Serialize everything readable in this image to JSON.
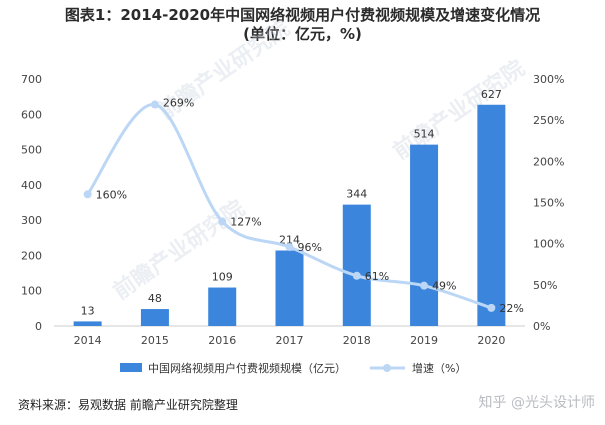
{
  "title_line1": "图表1：2014-2020年中国网络视频用户付费视频规模及增速变化情况",
  "title_line2": "(单位：亿元，%)",
  "footer": "资料来源：易观数据 前瞻产业研究院整理",
  "brand": "知乎 @光头设计师",
  "watermark": "前瞻产业研究院",
  "colors": {
    "bar": "#3b86dc",
    "line": "#bcd7f5",
    "text": "#444444",
    "grid": "#eeeeee"
  },
  "chart_data": {
    "type": "bar+line",
    "categories": [
      "2014",
      "2015",
      "2016",
      "2017",
      "2018",
      "2019",
      "2020"
    ],
    "series": [
      {
        "name": "中国网络视频用户付费视频规模（亿元）",
        "type": "bar",
        "axis": "left",
        "values": [
          13,
          48,
          109,
          214,
          344,
          514,
          627
        ],
        "labels": [
          "13",
          "48",
          "109",
          "214",
          "344",
          "514",
          "627"
        ]
      },
      {
        "name": "增速（%）",
        "type": "line",
        "axis": "right",
        "values": [
          160,
          269,
          127,
          96,
          61,
          49,
          22
        ],
        "labels": [
          "160%",
          "269%",
          "127%",
          "96%",
          "61%",
          "49%",
          "22%"
        ]
      }
    ],
    "y_left": {
      "min": 0,
      "max": 700,
      "ticks": [
        "0",
        "100",
        "200",
        "300",
        "400",
        "500",
        "600",
        "700"
      ]
    },
    "y_right": {
      "min": 0,
      "max": 300,
      "ticks": [
        "0%",
        "50%",
        "100%",
        "150%",
        "200%",
        "250%",
        "300%"
      ]
    },
    "legend": "bottom"
  }
}
